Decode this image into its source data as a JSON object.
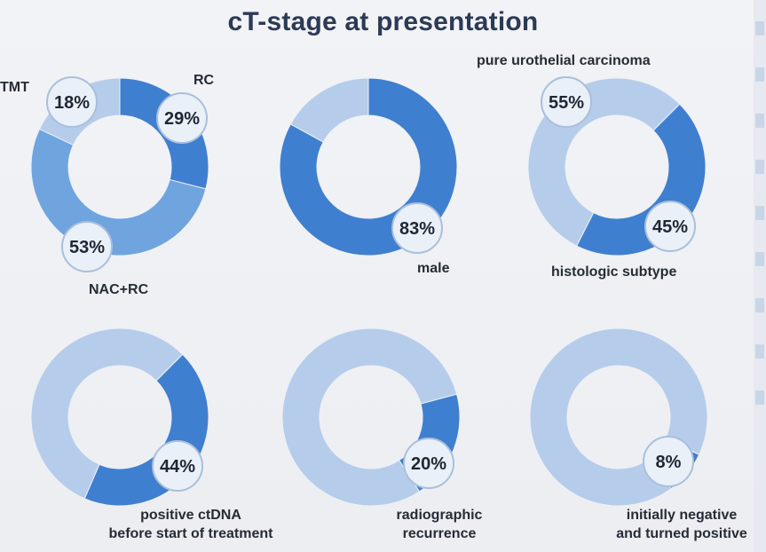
{
  "title": "cT-stage at presentation",
  "colors": {
    "dark": "#3f7fcf",
    "medium": "#6fa4df",
    "light": "#b5cdea",
    "badge_fill": "#eaf0f8",
    "badge_stroke": "#a9bfdc"
  },
  "chart_data": [
    {
      "type": "pie",
      "slices": [
        {
          "label": "RC",
          "value": 29,
          "color": "dark",
          "badge": "29%"
        },
        {
          "label": "NAC+RC",
          "value": 53,
          "color": "medium",
          "badge": "53%"
        },
        {
          "label": "TMT",
          "value": 18,
          "color": "light",
          "badge": "18%"
        }
      ]
    },
    {
      "type": "pie",
      "slices": [
        {
          "label": "male",
          "value": 83,
          "color": "dark",
          "badge": "83%"
        },
        {
          "label": "",
          "value": 17,
          "color": "light",
          "badge": ""
        }
      ]
    },
    {
      "type": "pie",
      "slices": [
        {
          "label": "histologic subtype",
          "value": 45,
          "color": "dark",
          "badge": "45%"
        },
        {
          "label": "pure urothelial carcinoma",
          "value": 55,
          "color": "light",
          "badge": "55%"
        }
      ]
    },
    {
      "type": "pie",
      "slices": [
        {
          "label": "positive ctDNA\nbefore start of treatment",
          "value": 44,
          "color": "dark",
          "badge": "44%"
        },
        {
          "label": "",
          "value": 56,
          "color": "light",
          "badge": ""
        }
      ]
    },
    {
      "type": "pie",
      "slices": [
        {
          "label": "radiographic\nrecurrence",
          "value": 20,
          "color": "dark",
          "badge": "20%"
        },
        {
          "label": "",
          "value": 80,
          "color": "light",
          "badge": ""
        }
      ]
    },
    {
      "type": "pie",
      "slices": [
        {
          "label": "initially negative\nand turned positive",
          "value": 8,
          "color": "dark",
          "badge": "8%"
        },
        {
          "label": "",
          "value": 92,
          "color": "light",
          "badge": ""
        }
      ]
    }
  ],
  "labels": {
    "tmt": "TMT",
    "rc": "RC",
    "nac_rc": "NAC+RC",
    "pure_uc": "pure urothelial carcinoma",
    "male": "male",
    "histologic_subtype": "histologic subtype",
    "ctdna_line1": "positive ctDNA",
    "ctdna_line2": "before start of treatment",
    "radio_line1": "radiographic",
    "radio_line2": "recurrence",
    "initneg_line1": "initially negative",
    "initneg_line2": "and turned positive"
  }
}
